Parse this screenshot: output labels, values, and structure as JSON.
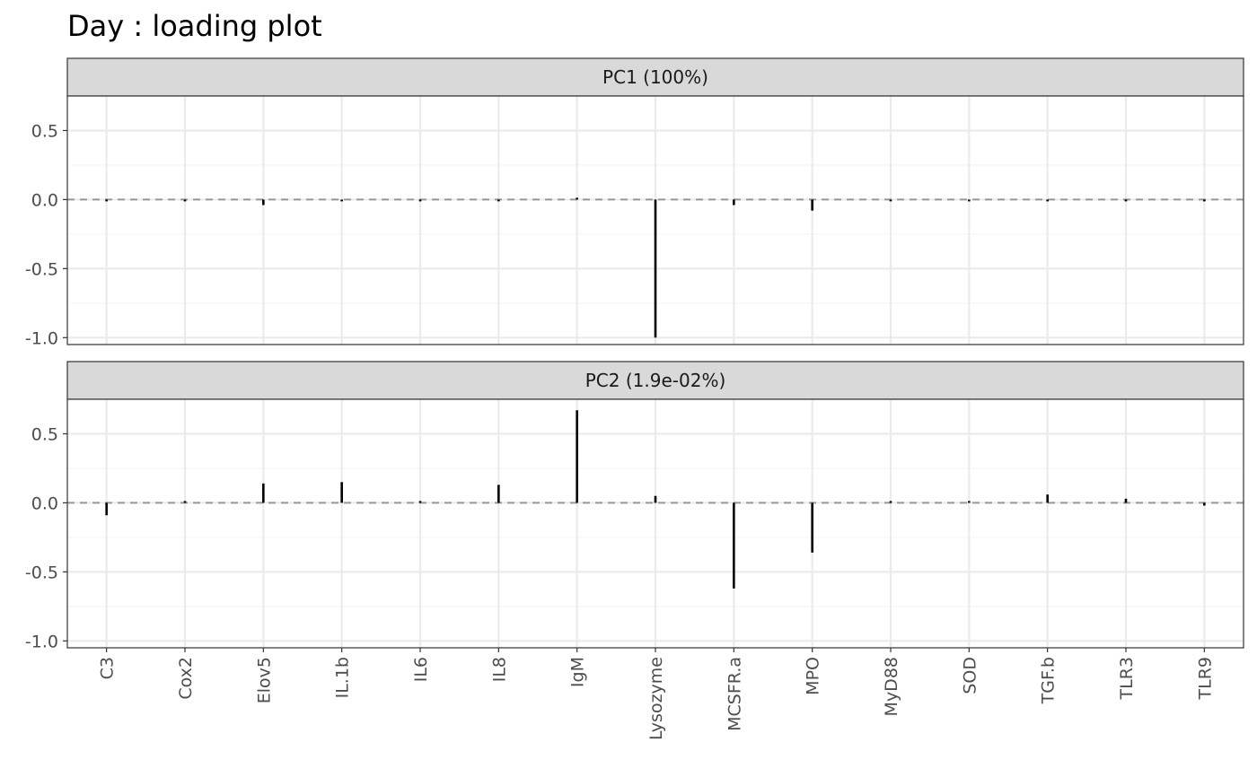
{
  "chart_data": {
    "type": "bar",
    "title": "Day : loading plot",
    "xlabel": "",
    "ylabel": "",
    "categories": [
      "C3",
      "Cox2",
      "Elov5",
      "IL.1b",
      "IL6",
      "IL8",
      "IgM",
      "Lysozyme",
      "MCSFR.a",
      "MPO",
      "MyD88",
      "SOD",
      "TGF.b",
      "TLR3",
      "TLR9"
    ],
    "ylim": [
      -1.05,
      0.75
    ],
    "yticks": [
      0.5,
      0.0,
      -0.5,
      -1.0
    ],
    "ytick_labels": [
      "0.5",
      "0.0",
      "-0.5",
      "-1.0"
    ],
    "grid": true,
    "reference_line": 0,
    "panels": [
      {
        "label": "PC1 (100%)",
        "values": [
          -0.004,
          -0.003,
          -0.04,
          -0.002,
          -0.002,
          -0.004,
          0.005,
          -1.0,
          -0.04,
          -0.08,
          -0.003,
          -0.002,
          -0.008,
          -0.002,
          -0.004
        ]
      },
      {
        "label": "PC2 (1.9e-02%)",
        "values": [
          -0.09,
          0.005,
          0.14,
          0.15,
          0.01,
          0.13,
          0.67,
          0.05,
          -0.62,
          -0.36,
          0.01,
          0.002,
          0.06,
          0.03,
          -0.02
        ]
      }
    ],
    "colors": {
      "strip_fill": "#d9d9d9",
      "strip_border": "#333333",
      "panel_border": "#333333",
      "grid_major": "#ebebeb",
      "grid_minor": "#f5f5f5",
      "reference_line": "#999999",
      "bar": "#000000"
    }
  }
}
